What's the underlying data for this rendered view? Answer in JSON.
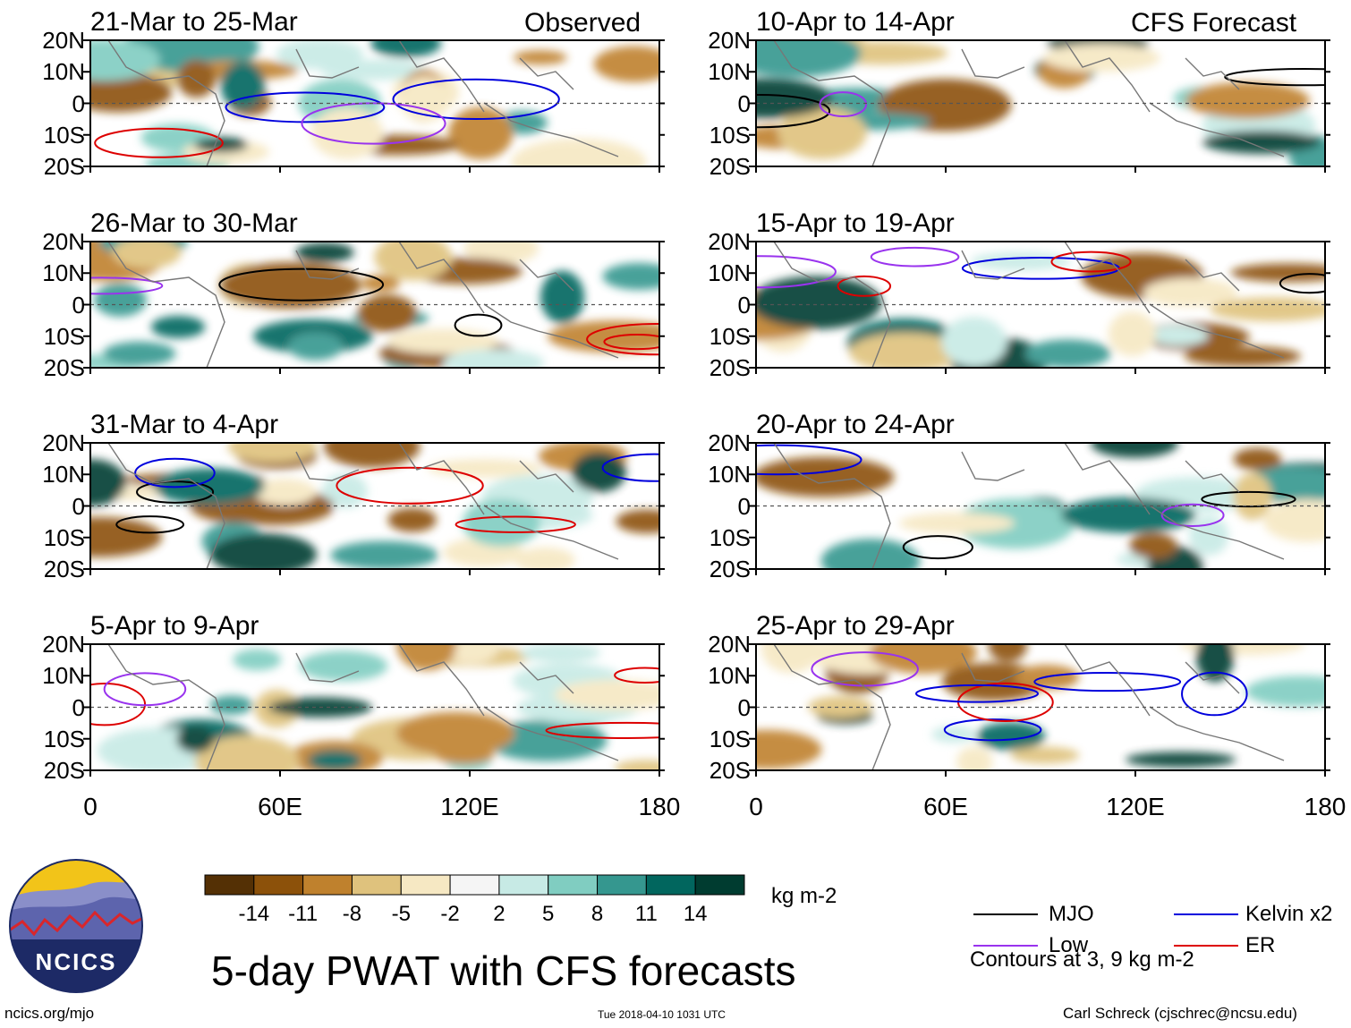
{
  "headers": {
    "observed": "Observed",
    "forecast": "CFS Forecast"
  },
  "panels": [
    {
      "title": "21-Mar to 25-Mar",
      "group": "observed"
    },
    {
      "title": "26-Mar to 30-Mar",
      "group": "observed"
    },
    {
      "title": "31-Mar to 4-Apr",
      "group": "observed"
    },
    {
      "title": "5-Apr to 9-Apr",
      "group": "observed"
    },
    {
      "title": "10-Apr to 14-Apr",
      "group": "forecast"
    },
    {
      "title": "15-Apr to 19-Apr",
      "group": "forecast"
    },
    {
      "title": "20-Apr to 24-Apr",
      "group": "forecast"
    },
    {
      "title": "25-Apr to 29-Apr",
      "group": "forecast"
    }
  ],
  "lat_labels": [
    "20N",
    "10N",
    "0",
    "10S",
    "20S"
  ],
  "lon_labels": [
    "0",
    "60E",
    "120E",
    "180"
  ],
  "colorbar": {
    "colors": [
      "#543005",
      "#8c510a",
      "#bf812d",
      "#dfc27d",
      "#f6e8c3",
      "#f5f5f5",
      "#c7eae5",
      "#80cdc1",
      "#35978f",
      "#01665e",
      "#003c30"
    ],
    "tick_labels": [
      "-14",
      "-11",
      "-8",
      "-5",
      "-2",
      "2",
      "5",
      "8",
      "11",
      "14"
    ],
    "units": "kg m-2"
  },
  "title": "5-day PWAT with CFS forecasts",
  "legend": {
    "items": [
      {
        "label": "MJO",
        "color": "#000000"
      },
      {
        "label": "Kelvin x2",
        "color": "#0000dd"
      },
      {
        "label": "Low",
        "color": "#9933ee"
      },
      {
        "label": "ER",
        "color": "#dd0000"
      }
    ],
    "note": "Contours at 3, 9 kg m-2"
  },
  "logo": {
    "text": "NCICS"
  },
  "footer": {
    "url": "ncics.org/mjo",
    "timestamp": "Tue 2018-04-10 1031 UTC",
    "credit": "Carl Schreck (cjschrec@ncsu.edu)"
  }
}
